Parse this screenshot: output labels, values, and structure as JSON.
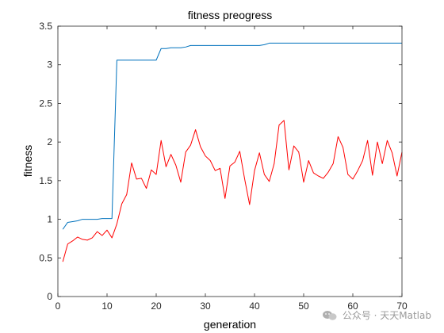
{
  "chart_data": {
    "type": "line",
    "title": "fitness preogress",
    "xlabel": "generation",
    "ylabel": "fitness",
    "xlim": [
      0,
      70
    ],
    "ylim": [
      0,
      3.5
    ],
    "xticks": [
      0,
      10,
      20,
      30,
      40,
      50,
      60,
      70
    ],
    "yticks": [
      0,
      0.5,
      1,
      1.5,
      2,
      2.5,
      3,
      3.5
    ],
    "grid": false,
    "x": [
      1,
      2,
      3,
      4,
      5,
      6,
      7,
      8,
      9,
      10,
      11,
      12,
      13,
      14,
      15,
      16,
      17,
      18,
      19,
      20,
      21,
      22,
      23,
      24,
      25,
      26,
      27,
      28,
      29,
      30,
      31,
      32,
      33,
      34,
      35,
      36,
      37,
      38,
      39,
      40,
      41,
      42,
      43,
      44,
      45,
      46,
      47,
      48,
      49,
      50,
      51,
      52,
      53,
      54,
      55,
      56,
      57,
      58,
      59,
      60,
      61,
      62,
      63,
      64,
      65,
      66,
      67,
      68,
      69,
      70
    ],
    "series": [
      {
        "color": "#0072BD",
        "values": [
          0.87,
          0.96,
          0.97,
          0.98,
          1.0,
          1.0,
          1.0,
          1.0,
          1.01,
          1.01,
          1.01,
          3.06,
          3.06,
          3.06,
          3.06,
          3.06,
          3.06,
          3.06,
          3.06,
          3.06,
          3.21,
          3.21,
          3.22,
          3.22,
          3.22,
          3.23,
          3.25,
          3.25,
          3.25,
          3.25,
          3.25,
          3.25,
          3.25,
          3.25,
          3.25,
          3.25,
          3.25,
          3.25,
          3.25,
          3.25,
          3.25,
          3.26,
          3.28,
          3.28,
          3.28,
          3.28,
          3.28,
          3.28,
          3.28,
          3.28,
          3.28,
          3.28,
          3.28,
          3.28,
          3.28,
          3.28,
          3.28,
          3.28,
          3.28,
          3.28,
          3.28,
          3.28,
          3.28,
          3.28,
          3.28,
          3.28,
          3.28,
          3.28,
          3.28,
          3.28
        ]
      },
      {
        "color": "#FF0000",
        "values": [
          0.45,
          0.68,
          0.72,
          0.77,
          0.74,
          0.73,
          0.76,
          0.84,
          0.79,
          0.86,
          0.76,
          0.94,
          1.2,
          1.32,
          1.73,
          1.52,
          1.53,
          1.4,
          1.64,
          1.58,
          2.02,
          1.68,
          1.84,
          1.7,
          1.48,
          1.87,
          1.96,
          2.16,
          1.94,
          1.82,
          1.76,
          1.63,
          1.66,
          1.27,
          1.69,
          1.74,
          1.88,
          1.52,
          1.19,
          1.63,
          1.86,
          1.58,
          1.49,
          1.72,
          2.22,
          2.28,
          1.64,
          1.95,
          1.87,
          1.48,
          1.76,
          1.6,
          1.56,
          1.53,
          1.61,
          1.72,
          2.07,
          1.93,
          1.58,
          1.52,
          1.63,
          1.76,
          2.02,
          1.57,
          2.0,
          1.72,
          2.02,
          1.86,
          1.56,
          1.87
        ]
      }
    ]
  },
  "watermark": {
    "text": "公众号 · 天天Matlab",
    "logo_icon": "wechat-logo"
  }
}
